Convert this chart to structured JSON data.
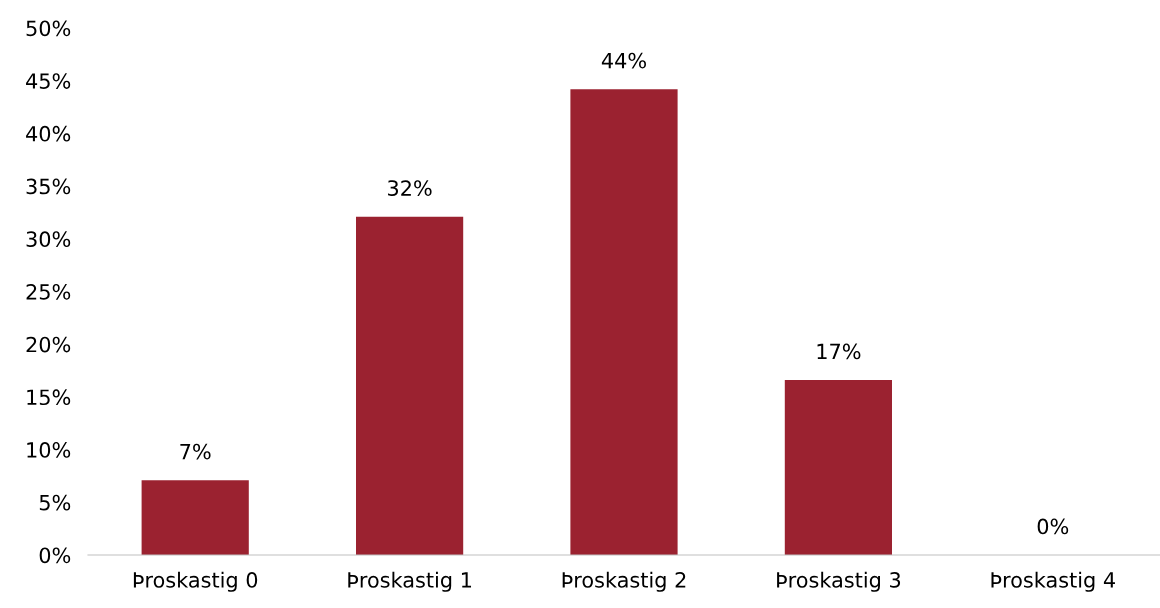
{
  "chart_data": {
    "type": "bar",
    "categories": [
      "Þroskastig 0",
      "Þroskastig 1",
      "Þroskastig 2",
      "Þroskastig 3",
      "Þroskastig 4"
    ],
    "values": [
      7.1,
      32.1,
      44.2,
      16.6,
      0
    ],
    "value_labels": [
      "7%",
      "32%",
      "44%",
      "17%",
      "0%"
    ],
    "color": "#9b2230",
    "ylim": [
      0,
      50
    ],
    "yticks": [
      {
        "value": 0,
        "label": "0%"
      },
      {
        "value": 5,
        "label": "5%"
      },
      {
        "value": 10,
        "label": "10%"
      },
      {
        "value": 15,
        "label": "15%"
      },
      {
        "value": 20,
        "label": "20%"
      },
      {
        "value": 25,
        "label": "25%"
      },
      {
        "value": 30,
        "label": "30%"
      },
      {
        "value": 35,
        "label": "35%"
      },
      {
        "value": 40,
        "label": "40%"
      },
      {
        "value": 45,
        "label": "45%"
      },
      {
        "value": 50,
        "label": "50%"
      }
    ],
    "grid": false,
    "legend": false
  }
}
